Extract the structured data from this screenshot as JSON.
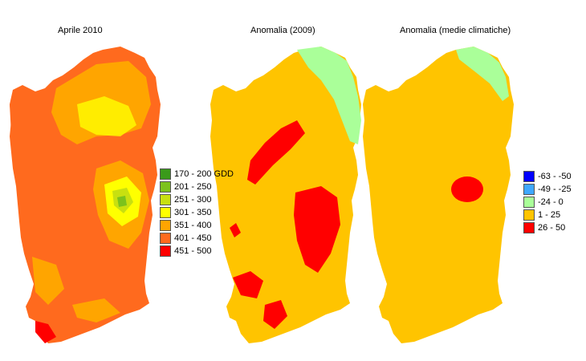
{
  "panels": [
    {
      "title": "Aprile 2010"
    },
    {
      "title": "Anomalia (2009)"
    },
    {
      "title": "Anomalia (medie climatiche)"
    }
  ],
  "legend_gdd": [
    {
      "label": "170 - 200 GDD",
      "color": "#3a9a1a"
    },
    {
      "label": "201 - 250",
      "color": "#7cc21c"
    },
    {
      "label": "251 - 300",
      "color": "#c8e010"
    },
    {
      "label": "301 - 350",
      "color": "#ffff00"
    },
    {
      "label": "351 - 400",
      "color": "#ffa500"
    },
    {
      "label": "401 - 450",
      "color": "#ff6a1e"
    },
    {
      "label": "451 - 500",
      "color": "#ff0000"
    }
  ],
  "legend_anomaly": [
    {
      "label": "-63 - -50",
      "color": "#0000ff"
    },
    {
      "label": "-49 - -25",
      "color": "#3fa8ff"
    },
    {
      "label": "-24 - 0",
      "color": "#aaff99"
    },
    {
      "label": "1 - 25",
      "color": "#ffc400"
    },
    {
      "label": "26 - 50",
      "color": "#ff0000"
    }
  ]
}
